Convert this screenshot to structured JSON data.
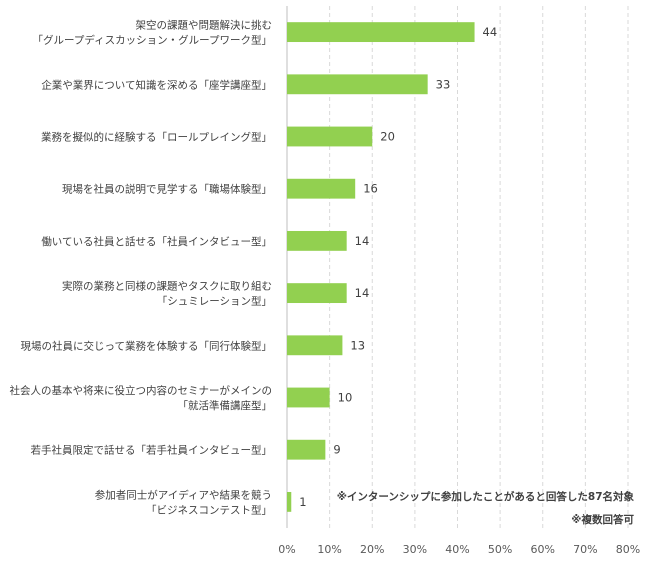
{
  "chart_data": {
    "type": "bar",
    "orientation": "horizontal",
    "categories": [
      [
        "架空の課題や問題解決に挑む",
        "「グループディスカッション・グループワーク型」"
      ],
      [
        "企業や業界について知識を深める「座学講座型」"
      ],
      [
        "業務を擬似的に経験する「ロールプレイング型」"
      ],
      [
        "現場を社員の説明で見学する「職場体験型」"
      ],
      [
        "働いている社員と話せる「社員インタビュー型」"
      ],
      [
        "実際の業務と同様の課題やタスクに取り組む",
        "「シュミレーション型」"
      ],
      [
        "現場の社員に交じって業務を体験する「同行体験型」"
      ],
      [
        "社会人の基本や将来に役立つ内容のセミナーがメインの",
        "「就活準備講座型」"
      ],
      [
        "若手社員限定で話せる「若手社員インタビュー型」"
      ],
      [
        "参加者同士がアイディアや結果を競う",
        "「ビジネスコンテスト型」"
      ]
    ],
    "values": [
      44,
      33,
      20,
      16,
      14,
      14,
      13,
      10,
      9,
      1
    ],
    "data_labels": [
      "44",
      "33",
      "20",
      "16",
      "14",
      "14",
      "13",
      "10",
      "9",
      "1"
    ],
    "xlim": [
      0,
      80
    ],
    "xticks": [
      0,
      10,
      20,
      30,
      40,
      50,
      60,
      70,
      80
    ],
    "xtick_labels": [
      "0%",
      "10%",
      "20%",
      "30%",
      "40%",
      "50%",
      "60%",
      "70%",
      "80%"
    ],
    "grid": "vertical-dashed",
    "bar_color": "#92D050",
    "grid_color": "#d9d9d9"
  },
  "notes": [
    "※インターンシップに参加したことがあると回答した87名対象",
    "※複数回答可"
  ]
}
